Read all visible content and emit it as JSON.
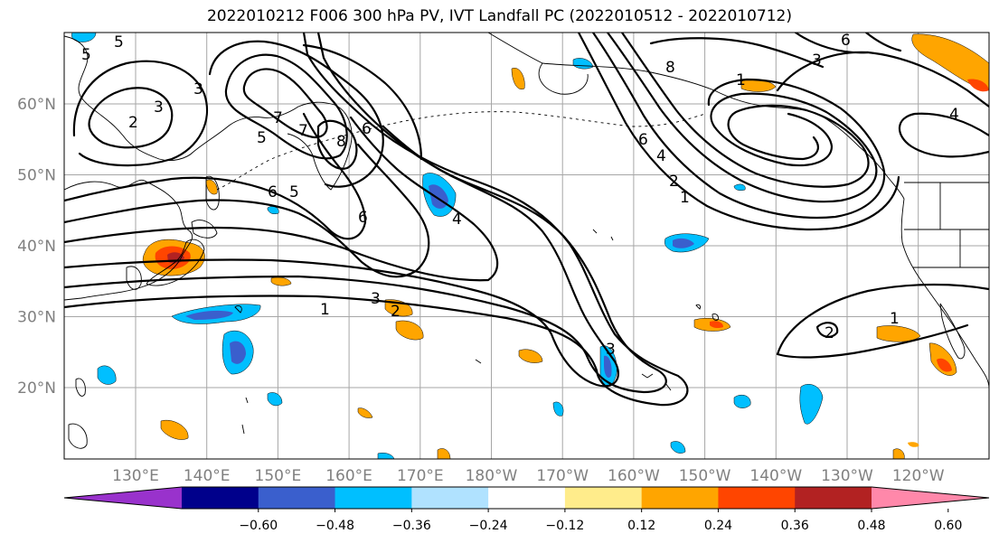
{
  "title": "2022010212 F006 300 hPa PV, IVT Landfall PC (2022010512 - 2022010712)",
  "map": {
    "region": "North Pacific",
    "lat_labels": [
      "20°N",
      "30°N",
      "40°N",
      "50°N",
      "60°N"
    ],
    "lon_labels": [
      "130°E",
      "140°E",
      "150°E",
      "160°E",
      "170°E",
      "180°W",
      "170°W",
      "160°W",
      "150°W",
      "140°W",
      "130°W",
      "120°W"
    ],
    "gridlines": true,
    "contour_variable": "300 hPa PV",
    "contour_levels_shown": [
      "1",
      "2",
      "3",
      "4",
      "5",
      "6",
      "7",
      "8"
    ],
    "shading_variable": "IVT Landfall PC"
  },
  "colorbar": {
    "ticks": [
      "−0.60",
      "−0.48",
      "−0.36",
      "−0.24",
      "−0.12",
      "0.12",
      "0.24",
      "0.36",
      "0.48",
      "0.60"
    ],
    "colors": [
      "#9932cc",
      "#00008b",
      "#3a5fcd",
      "#00bfff",
      "#b0e2ff",
      "#ffffff",
      "#ffec8b",
      "#ffa500",
      "#ff4500",
      "#b22222",
      "#ff88aa"
    ],
    "extend": "both"
  }
}
